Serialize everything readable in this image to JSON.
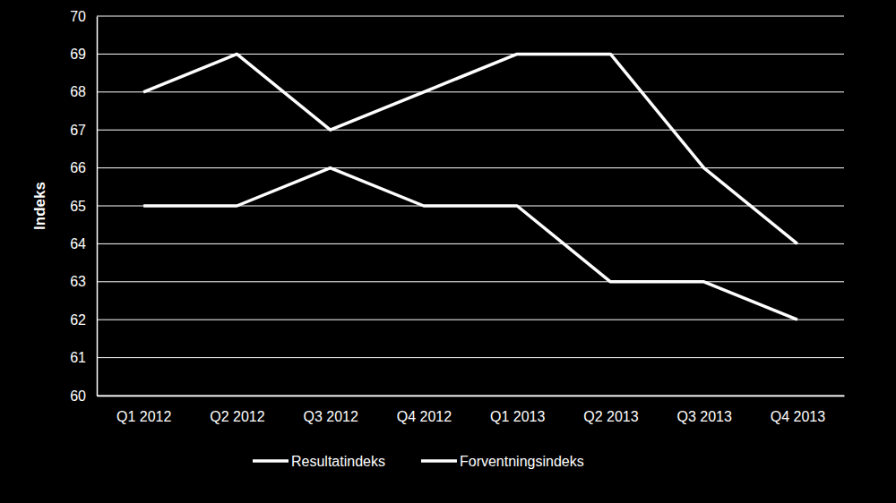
{
  "chart_data": {
    "type": "line",
    "y_label": "Indeks",
    "categories": [
      "Q1 2012",
      "Q2 2012",
      "Q3 2012",
      "Q4 2012",
      "Q1 2013",
      "Q2 2013",
      "Q3 2013",
      "Q4 2013"
    ],
    "series": [
      {
        "name": "Resultatindeks",
        "color": "#ffffff",
        "values": [
          68,
          69,
          67,
          68,
          69,
          69,
          66,
          64
        ]
      },
      {
        "name": "Forventningsindeks",
        "color": "#ffffff",
        "values": [
          65,
          65,
          66,
          65,
          65,
          63,
          63,
          62
        ]
      }
    ],
    "ylim": [
      60,
      70
    ],
    "yticks": [
      60,
      61,
      62,
      63,
      64,
      65,
      66,
      67,
      68,
      69,
      70
    ],
    "grid": true,
    "legend": "bottom"
  }
}
